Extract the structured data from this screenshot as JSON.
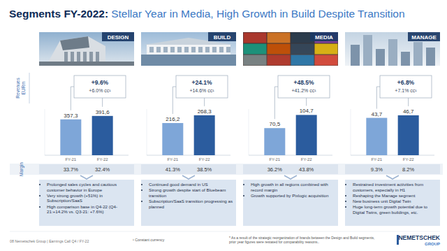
{
  "header": {
    "lead": "Segments FY-2022:",
    "text": "Stellar Year in Media, High Growth in Build Despite Transition"
  },
  "row_labels": {
    "revenues": "Revenues",
    "unit": "EURm",
    "margin": "Margin"
  },
  "chart_data": [
    {
      "type": "bar",
      "title": "DESIGN",
      "categories": [
        "FY-21",
        "FY-22"
      ],
      "values": [
        357.3,
        391.6
      ],
      "value_labels": [
        "357,3",
        "391,6"
      ],
      "colors": [
        "#7ea6d8",
        "#2b5c9e"
      ],
      "ylim": [
        0,
        460
      ],
      "data_labels": true,
      "tick_labels": "x",
      "annotations": [
        "+9.6%",
        "+6.0% cc¹"
      ],
      "margin": [
        "33.7%",
        "32.4%"
      ],
      "notes": [
        "Prolonged sales cycles and cautious customer behavior in Europe",
        "Very strong growth (+51%) in Subscription/SaaS",
        "High comparison base in Q4-22 (Q4-21:+14.2% vs. Q3-21: +7.6%)"
      ]
    },
    {
      "type": "bar",
      "title": "BUILD",
      "categories": [
        "FY-21",
        "FY-22"
      ],
      "values": [
        216.2,
        268.3
      ],
      "value_labels": [
        "216,2",
        "268,3"
      ],
      "colors": [
        "#7ea6d8",
        "#2b5c9e"
      ],
      "ylim": [
        0,
        310
      ],
      "data_labels": true,
      "tick_labels": "x",
      "annotations": [
        "+24.1%",
        "+14.6% cc¹"
      ],
      "margin": [
        "41.3%",
        "38.5%"
      ],
      "notes": [
        "Continued good demand in US",
        "Strong growth despite start of Bluebeam transition",
        "Subscription/SaaS transition progressing as planned"
      ]
    },
    {
      "type": "bar",
      "title": "MEDIA",
      "categories": [
        "FY-21",
        "FY-22"
      ],
      "values": [
        70.5,
        104.7
      ],
      "value_labels": [
        "70,5",
        "104,7"
      ],
      "colors": [
        "#7ea6d8",
        "#2b5c9e"
      ],
      "ylim": [
        0,
        120
      ],
      "data_labels": true,
      "tick_labels": "x",
      "annotations": [
        "+48.5%",
        "+41.2% cc¹"
      ],
      "margin": [
        "36.2%",
        "43.8%"
      ],
      "notes": [
        "High growth in all regions combined with record margin",
        "Growth supported by Pixlogic acquisition"
      ]
    },
    {
      "type": "bar",
      "title": "MANAGE",
      "categories": [
        "FY-21",
        "FY-22"
      ],
      "values": [
        43.7,
        46.7
      ],
      "value_labels": [
        "43,7",
        "46,7"
      ],
      "colors": [
        "#7ea6d8",
        "#2b5c9e"
      ],
      "ylim": [
        0,
        54
      ],
      "data_labels": true,
      "tick_labels": "x",
      "annotations": [
        "+6.8%",
        "+7.1% cc¹"
      ],
      "margin": [
        "9.3%",
        "8.2%"
      ],
      "notes": [
        "Restrained investment activities from customers, especially in H1",
        "Reshaping the Manage segment",
        "New business unit Digital Twin",
        "Huge long-term growth potential due to Digital Twins, green buildings, etc."
      ]
    }
  ],
  "footer": {
    "page": "08 Nemetschek Group | Earnings Call Q4 / FY-22",
    "footnote": "¹ Constant currency",
    "note": "* As a result of the strategic reorganization of brands between the Design and Build segments, prior year figures were restated for comparability reasons..",
    "logo": [
      "NEMETSCHEK",
      "GROUP"
    ]
  }
}
